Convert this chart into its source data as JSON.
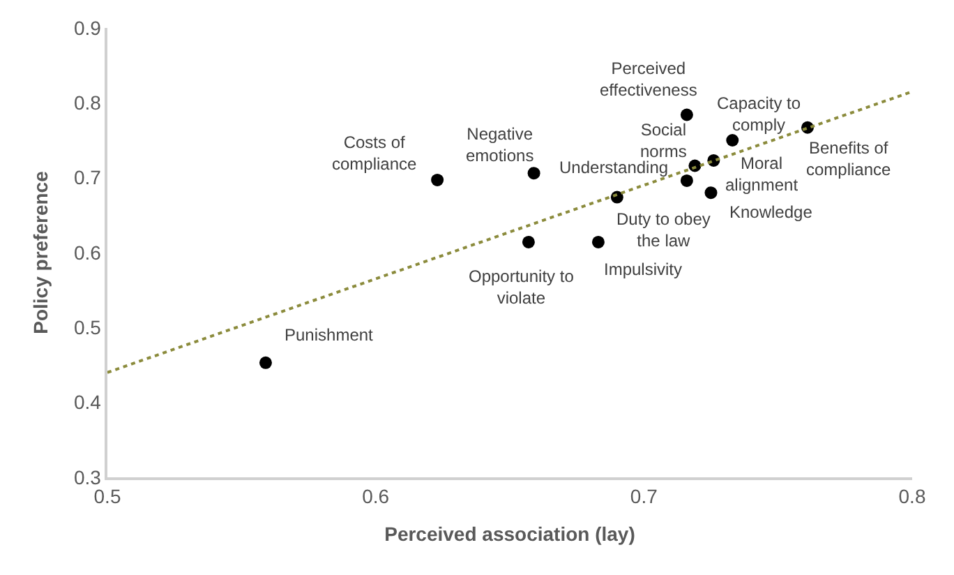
{
  "chart_data": {
    "type": "scatter",
    "xlabel": "Perceived association (lay)",
    "ylabel": "Policy preference",
    "xlim": [
      0.5,
      0.8
    ],
    "xticks": [
      0.5,
      0.6,
      0.7,
      0.8
    ],
    "ylim": [
      0.3,
      0.9
    ],
    "yticks": [
      0.3,
      0.4,
      0.5,
      0.6,
      0.7,
      0.8,
      0.9
    ],
    "grid": false,
    "marker": "circle",
    "series": [
      {
        "color": "#000000",
        "x": [
          0.559,
          0.623,
          0.659,
          0.657,
          0.683,
          0.69,
          0.716,
          0.719,
          0.716,
          0.733,
          0.726,
          0.725,
          0.761
        ],
        "values": [
          0.453,
          0.697,
          0.706,
          0.614,
          0.614,
          0.674,
          0.696,
          0.716,
          0.784,
          0.75,
          0.723,
          0.68,
          0.767
        ]
      },
      {
        "type": "line",
        "color": "#8b8b3c",
        "line_style": "dotted",
        "marker": "none",
        "x": [
          0.5,
          0.8
        ],
        "values": [
          0.44,
          0.815
        ]
      }
    ],
    "annotations": [
      {
        "text": "Punishment",
        "x": 0.559,
        "y": 0.453
      },
      {
        "text": "Costs of\ncompliance",
        "x": 0.623,
        "y": 0.697
      },
      {
        "text": "Negative\nemotions",
        "x": 0.659,
        "y": 0.706
      },
      {
        "text": "Opportunity to\nviolate",
        "x": 0.657,
        "y": 0.614
      },
      {
        "text": "Impulsivity",
        "x": 0.683,
        "y": 0.614
      },
      {
        "text": "Duty to obey\nthe law",
        "x": 0.69,
        "y": 0.674
      },
      {
        "text": "Understanding",
        "x": 0.716,
        "y": 0.696
      },
      {
        "text": "Social\nnorms",
        "x": 0.719,
        "y": 0.716
      },
      {
        "text": "Perceived\neffectiveness",
        "x": 0.716,
        "y": 0.784
      },
      {
        "text": "Capacity to\ncomply",
        "x": 0.733,
        "y": 0.75
      },
      {
        "text": "Moral\nalignment",
        "x": 0.726,
        "y": 0.723
      },
      {
        "text": "Knowledge",
        "x": 0.725,
        "y": 0.68
      },
      {
        "text": "Benefits of\ncompliance",
        "x": 0.761,
        "y": 0.767
      }
    ]
  }
}
